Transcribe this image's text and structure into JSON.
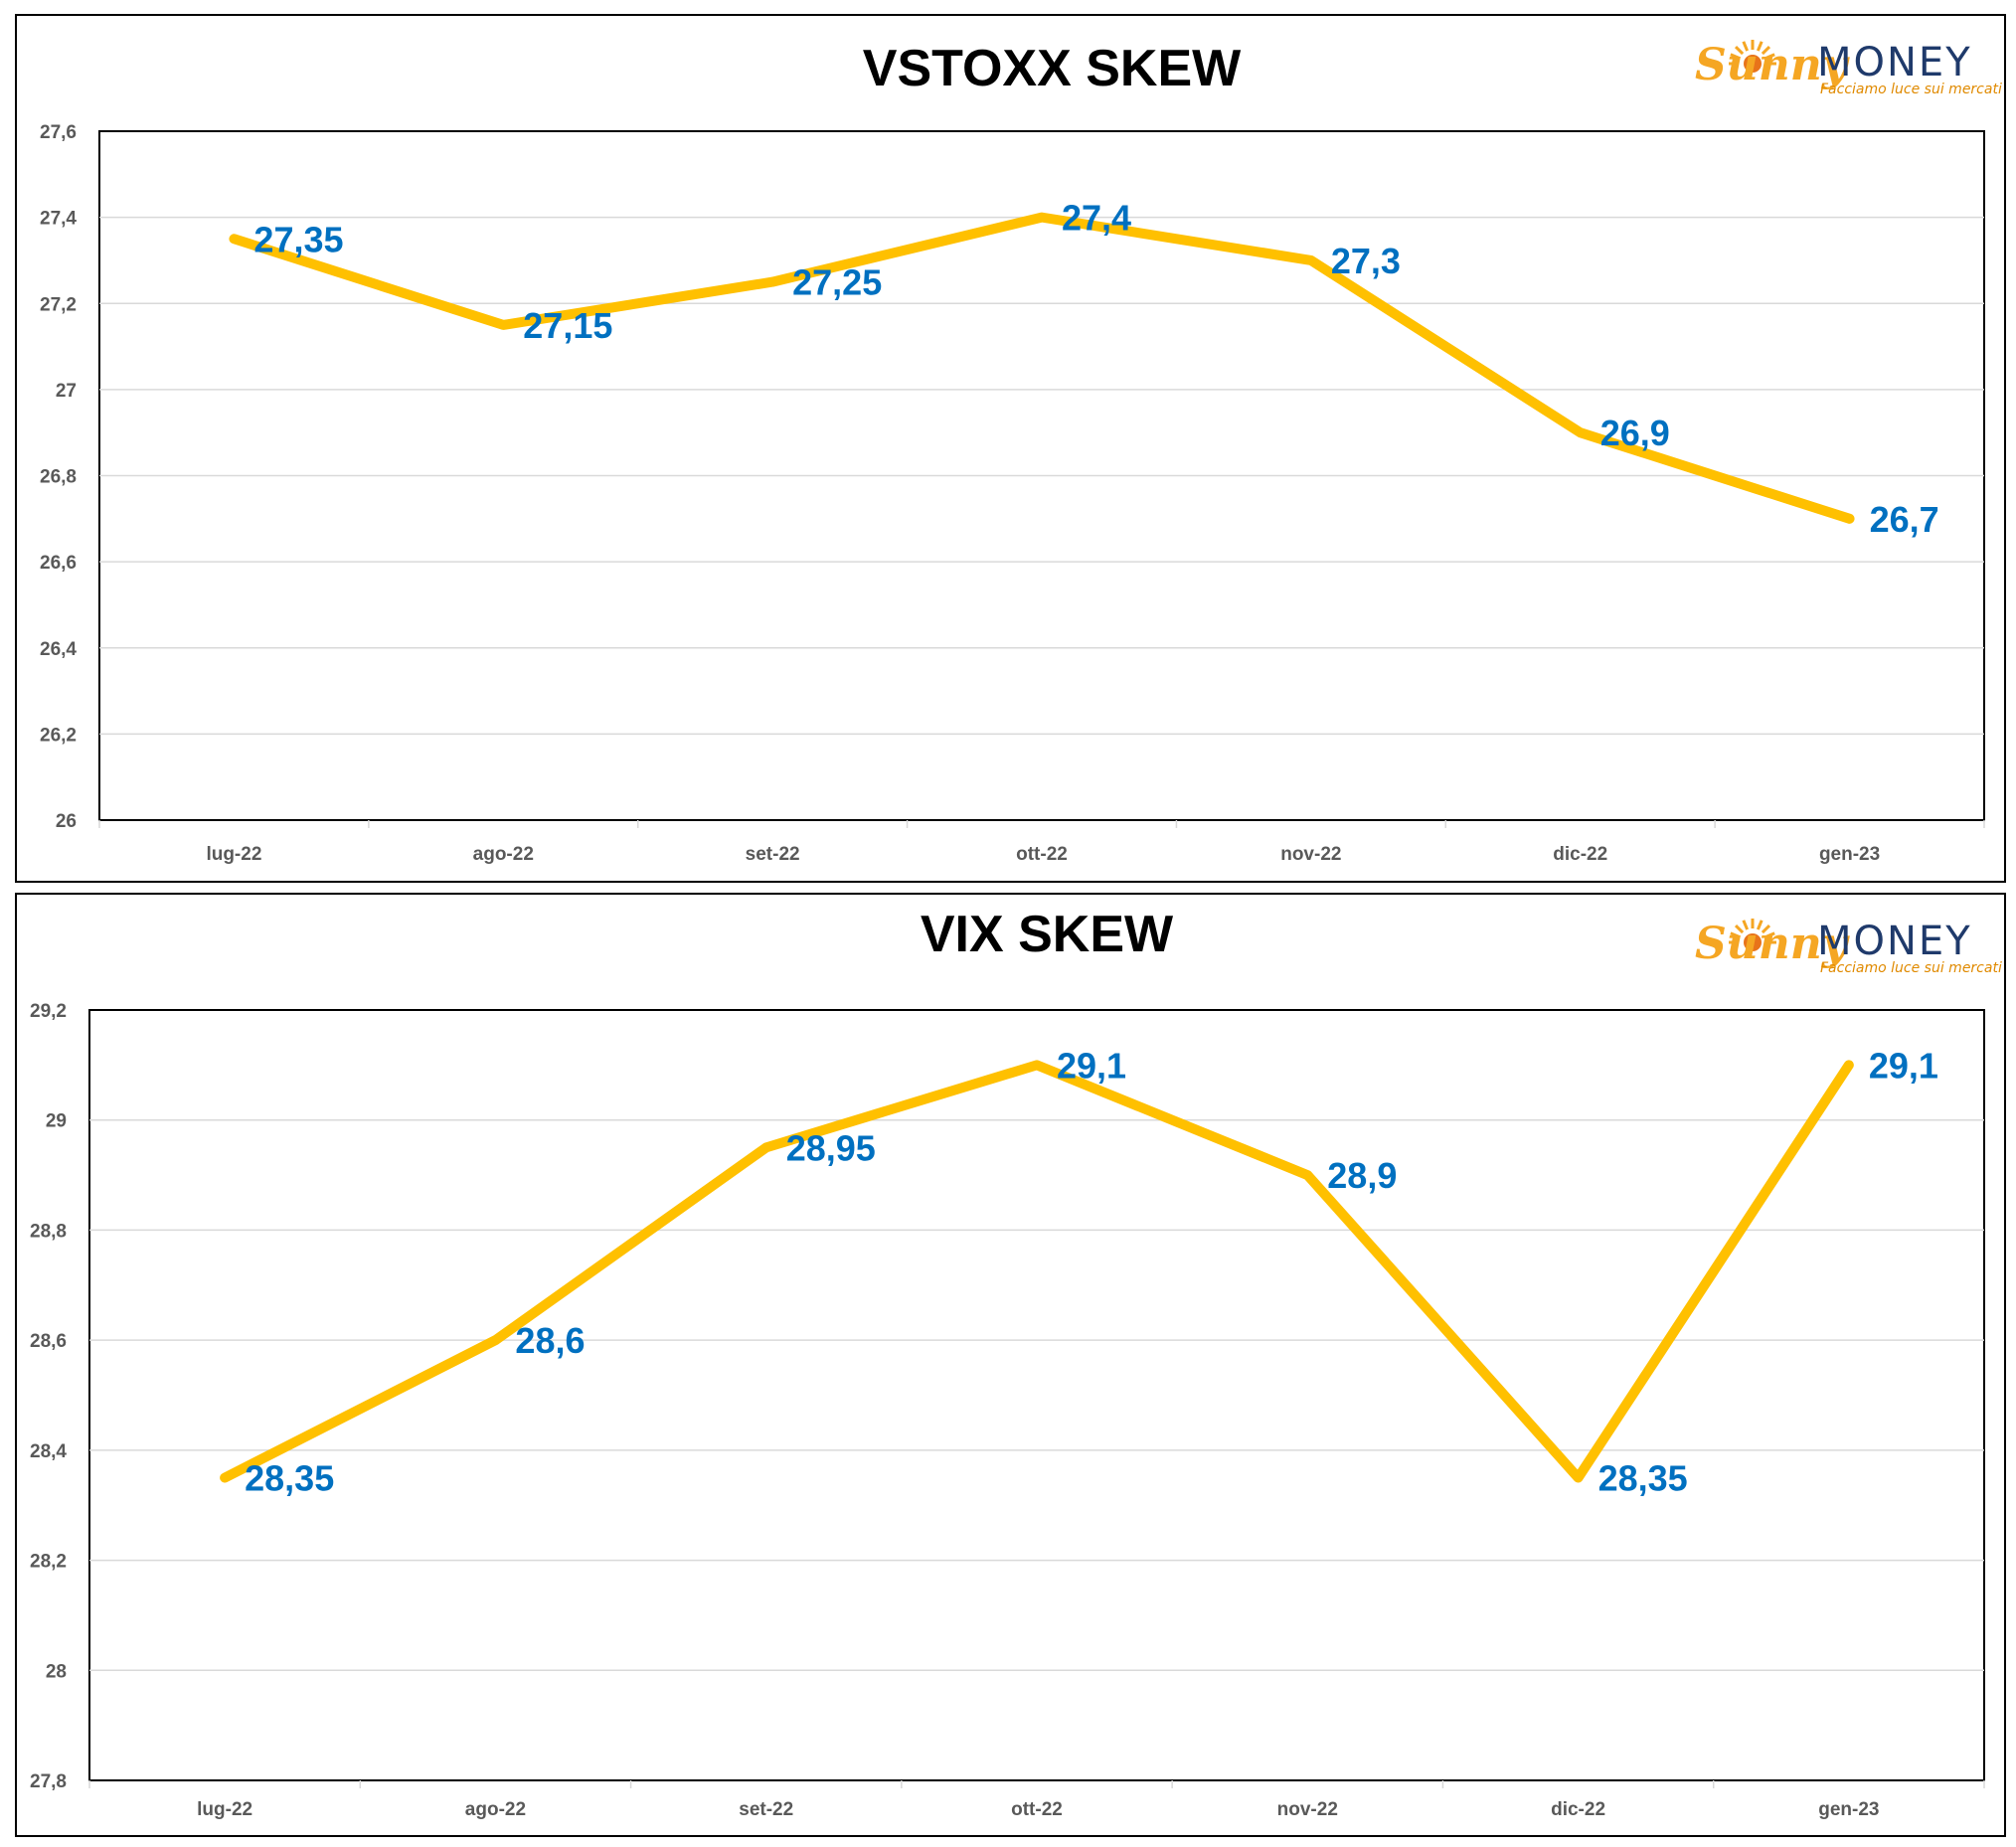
{
  "brand": {
    "sunny": "Sunny",
    "money": "MONEY",
    "tagline": "Facciamo luce sui mercati"
  },
  "colors": {
    "line": "#FFC000",
    "data_label": "#0070C0",
    "gridline": "#D9D9D9",
    "axis_text": "#595959"
  },
  "chart_data": [
    {
      "type": "line",
      "title": "VSTOXX SKEW",
      "xlabel": "",
      "ylabel": "",
      "categories": [
        "lug-22",
        "ago-22",
        "set-22",
        "ott-22",
        "nov-22",
        "dic-22",
        "gen-23"
      ],
      "series": [
        {
          "values": [
            27.35,
            27.15,
            27.25,
            27.4,
            27.3,
            26.9,
            26.7
          ]
        }
      ],
      "value_labels": [
        "27,35",
        "27,15",
        "27,25",
        "27,4",
        "27,3",
        "26,9",
        "26,7"
      ],
      "ylim": [
        26,
        27.6
      ],
      "yticks": [
        26,
        26.2,
        26.4,
        26.6,
        26.8,
        27,
        27.2,
        27.4,
        27.6
      ],
      "ytick_labels": [
        "26",
        "26,2",
        "26,4",
        "26,6",
        "26,8",
        "27",
        "27,2",
        "27,4",
        "27,6"
      ],
      "grid": true,
      "legend": "none"
    },
    {
      "type": "line",
      "title": "VIX SKEW",
      "xlabel": "",
      "ylabel": "",
      "categories": [
        "lug-22",
        "ago-22",
        "set-22",
        "ott-22",
        "nov-22",
        "dic-22",
        "gen-23"
      ],
      "series": [
        {
          "values": [
            28.35,
            28.6,
            28.95,
            29.1,
            28.9,
            28.35,
            29.1
          ]
        }
      ],
      "value_labels": [
        "28,35",
        "28,6",
        "28,95",
        "29,1",
        "28,9",
        "28,35",
        "29,1"
      ],
      "ylim": [
        27.8,
        29.2
      ],
      "yticks": [
        27.8,
        28,
        28.2,
        28.4,
        28.6,
        28.8,
        29,
        29.2
      ],
      "ytick_labels": [
        "27,8",
        "28",
        "28,2",
        "28,4",
        "28,6",
        "28,8",
        "29",
        "29,2"
      ],
      "grid": true,
      "legend": "none"
    }
  ]
}
